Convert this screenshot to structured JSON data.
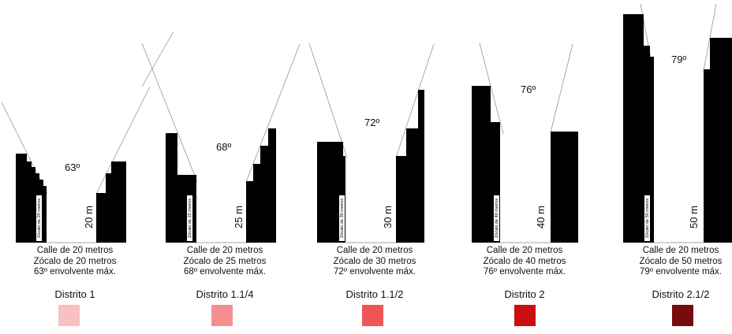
{
  "colors": {
    "building": "#000000",
    "guide_line": "#888888"
  },
  "panels": [
    {
      "angle": "63º",
      "height_label": "20 m",
      "zocalo_vertical": "Zócalo de 20 metros",
      "caption": [
        "Calle de 20 metros",
        "Zócalo de 20 metros",
        "63º envolvente máx."
      ],
      "district": "Distrito 1",
      "swatch_color": "#f8c0c0"
    },
    {
      "angle": "68º",
      "height_label": "25 m",
      "zocalo_vertical": "Zócalo de 25 metros",
      "caption": [
        "Calle de 20 metros",
        "Zócalo de 25 metros",
        "68º envolvente máx."
      ],
      "district": "Distrito 1.1/4",
      "swatch_color": "#f48f8f"
    },
    {
      "angle": "72º",
      "height_label": "30 m",
      "zocalo_vertical": "Zócalo de 30 metros",
      "caption": [
        "Calle de 20 metros",
        "Zócalo de 30 metros",
        "72º envolvente máx."
      ],
      "district": "Distrito 1.1/2",
      "swatch_color": "#ef5555"
    },
    {
      "angle": "76º",
      "height_label": "40 m",
      "zocalo_vertical": "Zócalo de 40 metros",
      "caption": [
        "Calle de 20 metros",
        "Zócalo de 40 metros",
        "76º envolvente máx."
      ],
      "district": "Distrito 2",
      "swatch_color": "#c90f0f"
    },
    {
      "angle": "79º",
      "height_label": "50 m",
      "zocalo_vertical": "Zócalo de 50 metros",
      "caption": [
        "Calle de 20 metros",
        "Zócalo de 50 metros",
        "79º envolvente máx."
      ],
      "district": "Distrito 2.1/2",
      "swatch_color": "#760c0c"
    }
  ]
}
